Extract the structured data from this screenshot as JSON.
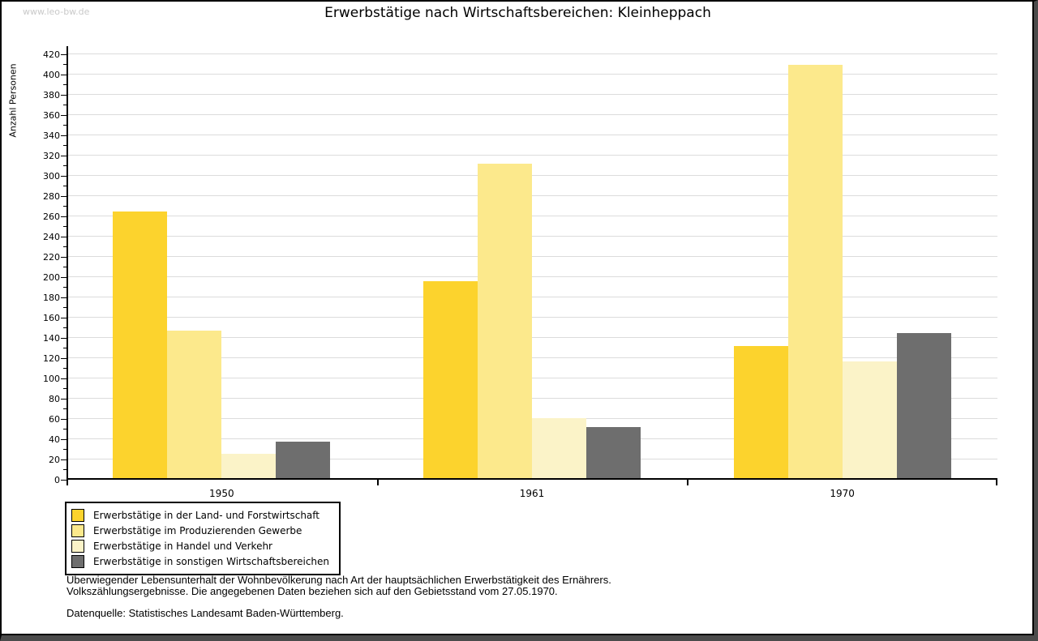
{
  "page": {
    "watermark": "www.leo-bw.de",
    "title": "Erwerbstätige nach Wirtschaftsbereichen: Kleinheppach"
  },
  "chart_data": {
    "type": "bar",
    "title": "Erwerbstätige nach Wirtschaftsbereichen: Kleinheppach",
    "xlabel": "",
    "ylabel": "Anzahl Personen",
    "categories": [
      "1950",
      "1961",
      "1970"
    ],
    "series": [
      {
        "name": "Erwerbstätige in der Land- und Forstwirtschaft",
        "color": "#FCD32D",
        "values": [
          265,
          196,
          132
        ]
      },
      {
        "name": "Erwerbstätige im Produzierenden Gewerbe",
        "color": "#FCE98C",
        "values": [
          147,
          312,
          410
        ]
      },
      {
        "name": "Erwerbstätige in Handel und Verkehr",
        "color": "#FBF3C8",
        "values": [
          26,
          61,
          117
        ]
      },
      {
        "name": "Erwerbstätige in sonstigen Wirtschaftsbereichen",
        "color": "#6E6E6E",
        "values": [
          38,
          52,
          145
        ]
      }
    ],
    "ylim": [
      0,
      420
    ],
    "y_major_step": 20,
    "y_minor_step": 10,
    "grid": "horizontal-major",
    "gridline_color": "#dcdcdc",
    "axis_color": "#000000",
    "legend_position": "bottom-left"
  },
  "footnotes": {
    "line1": "Überwiegender Lebensunterhalt der Wohnbevölkerung nach Art der hauptsächlichen Erwerbstätigkeit des Ernährers.",
    "line2": "Volkszählungsergebnisse. Die angegebenen Daten beziehen sich auf den Gebietsstand vom 27.05.1970.",
    "source": "Datenquelle: Statistisches Landesamt Baden-Württemberg."
  }
}
